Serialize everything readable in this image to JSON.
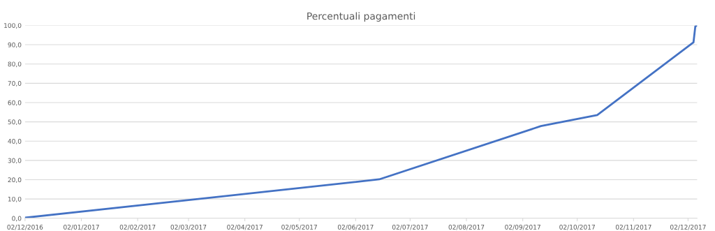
{
  "chart_data": {
    "type": "line",
    "title": "Percentuali pagamenti",
    "x": [
      "2016-12-02",
      "2017-06-15",
      "2017-09-12",
      "2017-10-13",
      "2017-12-05",
      "2017-12-06",
      "2017-12-07"
    ],
    "series": [
      {
        "color": "#4472c4",
        "values": [
          0.3,
          20.2,
          47.8,
          53.5,
          91.2,
          99.5,
          100.0
        ]
      }
    ],
    "xlim": [
      "2016-12-02",
      "2017-12-07"
    ],
    "xticks": [
      {
        "value": "2016-12-02",
        "label": "02/12/2016"
      },
      {
        "value": "2017-01-02",
        "label": "02/01/2017"
      },
      {
        "value": "2017-02-02",
        "label": "02/02/2017"
      },
      {
        "value": "2017-03-02",
        "label": "02/03/2017"
      },
      {
        "value": "2017-04-02",
        "label": "02/04/2017"
      },
      {
        "value": "2017-05-02",
        "label": "02/05/2017"
      },
      {
        "value": "2017-06-02",
        "label": "02/06/2017"
      },
      {
        "value": "2017-07-02",
        "label": "02/07/2017"
      },
      {
        "value": "2017-08-02",
        "label": "02/08/2017"
      },
      {
        "value": "2017-09-02",
        "label": "02/09/2017"
      },
      {
        "value": "2017-10-02",
        "label": "02/10/2017"
      },
      {
        "value": "2017-11-02",
        "label": "02/11/2017"
      },
      {
        "value": "2017-12-02",
        "label": "02/12/2017"
      }
    ],
    "ylim": [
      0,
      100
    ],
    "yticks": [
      {
        "value": 0,
        "label": "0,0"
      },
      {
        "value": 10,
        "label": "10,0"
      },
      {
        "value": 20,
        "label": "20,0"
      },
      {
        "value": 30,
        "label": "30,0"
      },
      {
        "value": 40,
        "label": "40,0"
      },
      {
        "value": 50,
        "label": "50,0"
      },
      {
        "value": 60,
        "label": "60,0"
      },
      {
        "value": 70,
        "label": "70,0"
      },
      {
        "value": 80,
        "label": "80,0"
      },
      {
        "value": 90,
        "label": "90,0"
      },
      {
        "value": 100,
        "label": "100,0"
      }
    ],
    "grid": "y",
    "marker": "none",
    "line_style": "solid"
  }
}
